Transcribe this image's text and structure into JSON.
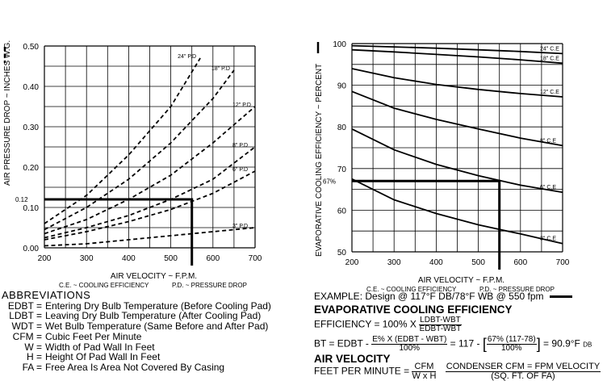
{
  "chart_data": [
    {
      "type": "line",
      "title": "",
      "xlabel": "AIR VELOCITY ~ F.P.M.",
      "ylabel": "AIR PRESSURE DROP ~ INCHES W.G.",
      "ylabel_legend": "- - -",
      "xlim": [
        200,
        700
      ],
      "ylim": [
        0,
        0.5
      ],
      "x_ticks": [
        "200",
        "300",
        "400",
        "500",
        "600",
        "700"
      ],
      "y_ticks": [
        "0.00",
        "0.10",
        "0.20",
        "0.30",
        "0.40",
        "0.50"
      ],
      "grid": true,
      "line_style": "dashed",
      "series": [
        {
          "name": "24\" P.D",
          "x": [
            200,
            300,
            400,
            500,
            570
          ],
          "y": [
            0.06,
            0.13,
            0.23,
            0.35,
            0.47
          ]
        },
        {
          "name": "18\" P.D",
          "x": [
            200,
            300,
            400,
            500,
            600,
            650
          ],
          "y": [
            0.045,
            0.1,
            0.17,
            0.26,
            0.37,
            0.44
          ]
        },
        {
          "name": "12\" P.D",
          "x": [
            200,
            300,
            400,
            500,
            600,
            700
          ],
          "y": [
            0.035,
            0.07,
            0.12,
            0.18,
            0.26,
            0.35
          ]
        },
        {
          "name": "8\" P.D",
          "x": [
            200,
            300,
            400,
            500,
            600,
            700
          ],
          "y": [
            0.025,
            0.05,
            0.08,
            0.12,
            0.17,
            0.25
          ]
        },
        {
          "name": "6\" P.D",
          "x": [
            200,
            300,
            400,
            500,
            600,
            700
          ],
          "y": [
            0.02,
            0.04,
            0.065,
            0.095,
            0.135,
            0.19
          ]
        },
        {
          "name": "3\" P.D",
          "x": [
            200,
            300,
            400,
            500,
            600,
            700
          ],
          "y": [
            0.005,
            0.01,
            0.02,
            0.03,
            0.04,
            0.05
          ]
        }
      ],
      "example": {
        "x": 550,
        "y": 0.12,
        "ylabel": "0.12"
      },
      "legend_bottom": [
        "C.E. ~ COOLING EFFICIENCY",
        "P.D. ~ PRESSURE DROP"
      ]
    },
    {
      "type": "line",
      "title": "",
      "xlabel": "AIR VELOCITY ~ F.P.M.",
      "ylabel": "EVAPORATIVE COOLING EFFICIENCY ~ PERCENT",
      "xlim": [
        200,
        700
      ],
      "ylim": [
        50,
        100
      ],
      "x_ticks": [
        "200",
        "300",
        "400",
        "500",
        "600",
        "700"
      ],
      "y_ticks": [
        "50",
        "60",
        "70",
        "80",
        "90",
        "100"
      ],
      "grid": true,
      "line_style": "solid",
      "series": [
        {
          "name": "24\" C.E",
          "x": [
            200,
            300,
            400,
            500,
            600,
            700
          ],
          "y": [
            99.5,
            99.2,
            98.9,
            98.5,
            98.1,
            97.6
          ]
        },
        {
          "name": "18\" C.E",
          "x": [
            200,
            300,
            400,
            500,
            600,
            700
          ],
          "y": [
            98.5,
            98.0,
            97.4,
            96.8,
            96.1,
            95.3
          ]
        },
        {
          "name": "12\" C.E",
          "x": [
            200,
            300,
            400,
            500,
            600,
            700
          ],
          "y": [
            94.0,
            91.8,
            90.2,
            89.0,
            88.0,
            87.2
          ]
        },
        {
          "name": "8\" C.E",
          "x": [
            200,
            300,
            400,
            500,
            600,
            700
          ],
          "y": [
            88.5,
            84.5,
            81.8,
            79.5,
            77.3,
            75.5
          ]
        },
        {
          "name": "6\" C.E",
          "x": [
            200,
            300,
            400,
            500,
            600,
            700
          ],
          "y": [
            79.5,
            74.5,
            71.0,
            68.3,
            66.0,
            64.3
          ]
        },
        {
          "name": "3\" C.E",
          "x": [
            200,
            300,
            400,
            500,
            600,
            700
          ],
          "y": [
            67.5,
            62.5,
            59.2,
            56.5,
            54.3,
            52.0
          ]
        }
      ],
      "example": {
        "x": 550,
        "y": 67.0,
        "ylabel": "67%"
      },
      "legend_bottom": [
        "C.E. ~ COOLING EFFICIENCY",
        "P.D. ~ PRESSURE DROP"
      ]
    }
  ],
  "abbreviations": {
    "title": "ABBREVIATIONS",
    "items": [
      {
        "key": "EDBT",
        "value": "Entering Dry Bulb Temperature (Before Cooling Pad)"
      },
      {
        "key": "LDBT",
        "value": "Leaving Dry Bulb Temperature (After Cooling Pad)"
      },
      {
        "key": "WDT",
        "value": "Wet Bulb Temperature (Same Before and After Pad)"
      },
      {
        "key": "CFM",
        "value": "Cubic Feet Per Minute"
      },
      {
        "key": "W",
        "value": "Width of Pad Wall In Feet"
      },
      {
        "key": "H",
        "value": "Height Of Pad Wall In Feet"
      },
      {
        "key": "FA",
        "value": "Free Area Is Area Not Covered By Casing"
      }
    ]
  },
  "example_text": {
    "line": "EXAMPLE: Design @ 117°F DB/78°F WB @ 550 fpm",
    "heading1": "EVAPORATIVE COOLING EFFICIENCY",
    "eff_lhs": "EFFICIENCY = 100% X",
    "eff_num": "LDBT-WBT",
    "eff_den": "EDBT-WBT",
    "bt_lhs": "BT = EDBT -",
    "bt_frac_num": "E% X (EDBT - WBT)",
    "bt_frac_den": "100%",
    "bt_mid": "= 117 -",
    "bt_frac2_num": "67% (117-78)",
    "bt_frac2_den": "100%",
    "bt_result": "= 90.9°F",
    "bt_unit": "DB",
    "heading2": "AIR VELOCITY",
    "fpm_lhs": "FEET PER MINUTE =",
    "fpm_num": "CFM",
    "fpm_den": "W x H",
    "cond_num": "CONDENSER CFM = FPM VELOCITY",
    "cond_den": "(SQ. FT. OF FA)"
  }
}
